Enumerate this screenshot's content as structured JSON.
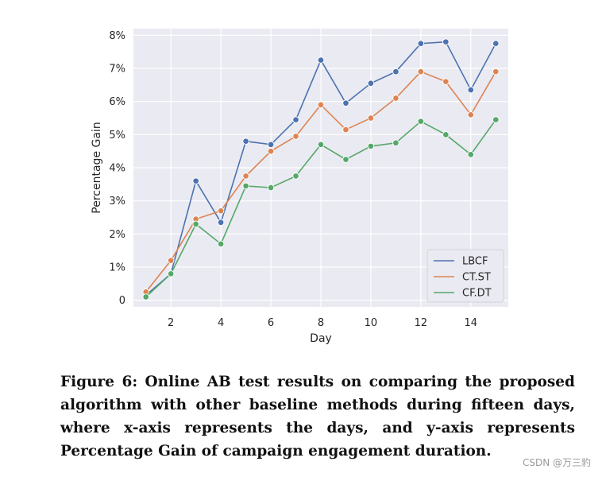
{
  "chart_data": {
    "type": "line",
    "xlabel": "Day",
    "ylabel": "Percentage Gain",
    "xlim": [
      0.5,
      15.5
    ],
    "ylim": [
      -0.2,
      8.2
    ],
    "xticks": [
      2,
      4,
      6,
      8,
      10,
      12,
      14
    ],
    "xtick_labels": [
      "2",
      "4",
      "6",
      "8",
      "10",
      "12",
      "14"
    ],
    "yticks": [
      0,
      1,
      2,
      3,
      4,
      5,
      6,
      7,
      8
    ],
    "ytick_labels": [
      "0",
      "1%",
      "2%",
      "3%",
      "4%",
      "5%",
      "6%",
      "7%",
      "8%"
    ],
    "grid": true,
    "legend_position": "lower-right",
    "background": "#eaeaf2",
    "x": [
      1,
      2,
      3,
      4,
      5,
      6,
      7,
      8,
      9,
      10,
      11,
      12,
      13,
      14,
      15
    ],
    "series": [
      {
        "name": "LBCF",
        "color": "#4c72b0",
        "values": [
          0.15,
          0.8,
          3.6,
          2.35,
          4.8,
          4.7,
          5.45,
          7.25,
          5.95,
          6.55,
          6.9,
          7.75,
          7.8,
          6.35,
          7.75
        ]
      },
      {
        "name": "CT.ST",
        "color": "#dd8452",
        "values": [
          0.25,
          1.2,
          2.45,
          2.7,
          3.75,
          4.5,
          4.95,
          5.9,
          5.15,
          5.5,
          6.1,
          6.9,
          6.6,
          5.6,
          6.9
        ]
      },
      {
        "name": "CF.DT",
        "color": "#55a868",
        "values": [
          0.1,
          0.8,
          2.3,
          1.7,
          3.45,
          3.4,
          3.75,
          4.7,
          4.25,
          4.65,
          4.75,
          5.4,
          5.0,
          4.4,
          5.45
        ]
      }
    ]
  },
  "caption": "Figure 6: Online AB test results on comparing the proposed algorithm with other baseline methods during fifteen days, where x-axis represents the days, and y-axis represents Percentage Gain of campaign engagement duration.",
  "watermark": "CSDN @万三豹"
}
